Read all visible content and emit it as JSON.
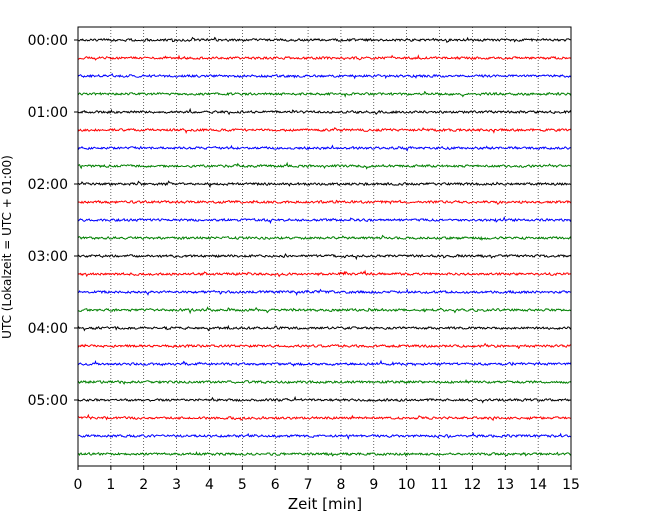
{
  "chart_data": {
    "type": "line",
    "title": "",
    "xlabel": "Zeit  [min]",
    "ylabel": "UTC (Lokalzeit = UTC + 01:00)",
    "xlim": [
      0,
      15
    ],
    "x_ticks": [
      "0",
      "1",
      "2",
      "3",
      "4",
      "5",
      "6",
      "7",
      "8",
      "9",
      "10",
      "11",
      "12",
      "13",
      "14",
      "15"
    ],
    "y_ticks": [
      "00:00",
      "01:00",
      "02:00",
      "03:00",
      "04:00",
      "05:00"
    ],
    "grid": "vertical dotted lines at each minute",
    "legend": "none",
    "color_cycle": [
      "#000000",
      "#ff0000",
      "#0000ff",
      "#008000"
    ],
    "traces": [
      {
        "start": "00:00",
        "color": "#000000"
      },
      {
        "start": "00:15",
        "color": "#ff0000"
      },
      {
        "start": "00:30",
        "color": "#0000ff"
      },
      {
        "start": "00:45",
        "color": "#008000"
      },
      {
        "start": "01:00",
        "color": "#000000"
      },
      {
        "start": "01:15",
        "color": "#ff0000"
      },
      {
        "start": "01:30",
        "color": "#0000ff"
      },
      {
        "start": "01:45",
        "color": "#008000"
      },
      {
        "start": "02:00",
        "color": "#000000"
      },
      {
        "start": "02:15",
        "color": "#ff0000"
      },
      {
        "start": "02:30",
        "color": "#0000ff"
      },
      {
        "start": "02:45",
        "color": "#008000"
      },
      {
        "start": "03:00",
        "color": "#000000"
      },
      {
        "start": "03:15",
        "color": "#ff0000"
      },
      {
        "start": "03:30",
        "color": "#0000ff"
      },
      {
        "start": "03:45",
        "color": "#008000"
      },
      {
        "start": "04:00",
        "color": "#000000"
      },
      {
        "start": "04:15",
        "color": "#ff0000"
      },
      {
        "start": "04:30",
        "color": "#0000ff"
      },
      {
        "start": "04:45",
        "color": "#008000"
      },
      {
        "start": "05:00",
        "color": "#000000"
      },
      {
        "start": "05:15",
        "color": "#ff0000"
      },
      {
        "start": "05:30",
        "color": "#0000ff"
      },
      {
        "start": "05:45",
        "color": "#008000"
      }
    ]
  }
}
